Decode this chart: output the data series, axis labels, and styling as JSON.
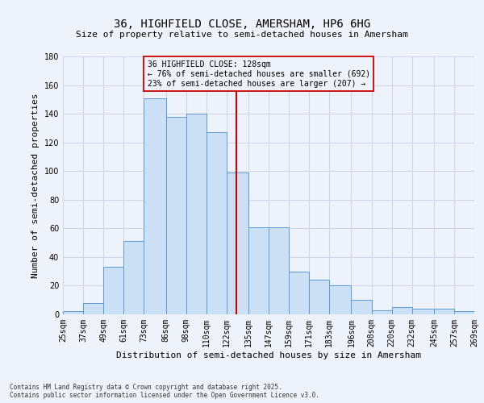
{
  "title": "36, HIGHFIELD CLOSE, AMERSHAM, HP6 6HG",
  "subtitle": "Size of property relative to semi-detached houses in Amersham",
  "xlabel": "Distribution of semi-detached houses by size in Amersham",
  "ylabel": "Number of semi-detached properties",
  "footer_line1": "Contains HM Land Registry data © Crown copyright and database right 2025.",
  "footer_line2": "Contains public sector information licensed under the Open Government Licence v3.0.",
  "annotation_line1": "36 HIGHFIELD CLOSE: 128sqm",
  "annotation_line2": "← 76% of semi-detached houses are smaller (692)",
  "annotation_line3": "23% of semi-detached houses are larger (207) →",
  "property_size": 128,
  "bin_edges": [
    25,
    37,
    49,
    61,
    73,
    86,
    98,
    110,
    122,
    135,
    147,
    159,
    171,
    183,
    196,
    208,
    220,
    232,
    245,
    257,
    269
  ],
  "bin_labels": [
    "25sqm",
    "37sqm",
    "49sqm",
    "61sqm",
    "73sqm",
    "86sqm",
    "98sqm",
    "110sqm",
    "122sqm",
    "135sqm",
    "147sqm",
    "159sqm",
    "171sqm",
    "183sqm",
    "196sqm",
    "208sqm",
    "220sqm",
    "232sqm",
    "245sqm",
    "257sqm",
    "269sqm"
  ],
  "counts": [
    2,
    8,
    33,
    51,
    151,
    138,
    140,
    127,
    99,
    61,
    61,
    30,
    24,
    20,
    10,
    3,
    5,
    4,
    4,
    2
  ],
  "bar_facecolor": "#cce0f5",
  "bar_edgecolor": "#5b9bd5",
  "vline_color": "#cc0000",
  "vline_x": 128,
  "annotation_box_color": "#cc0000",
  "annotation_text_color": "#000000",
  "grid_color": "#d0d8e8",
  "background_color": "#eef2fa",
  "ylim": [
    0,
    180
  ],
  "yticks": [
    0,
    20,
    40,
    60,
    80,
    100,
    120,
    140,
    160,
    180
  ],
  "title_fontsize": 10,
  "subtitle_fontsize": 8,
  "xlabel_fontsize": 8,
  "ylabel_fontsize": 8,
  "tick_fontsize": 7,
  "footer_fontsize": 5.5,
  "annotation_fontsize": 7
}
